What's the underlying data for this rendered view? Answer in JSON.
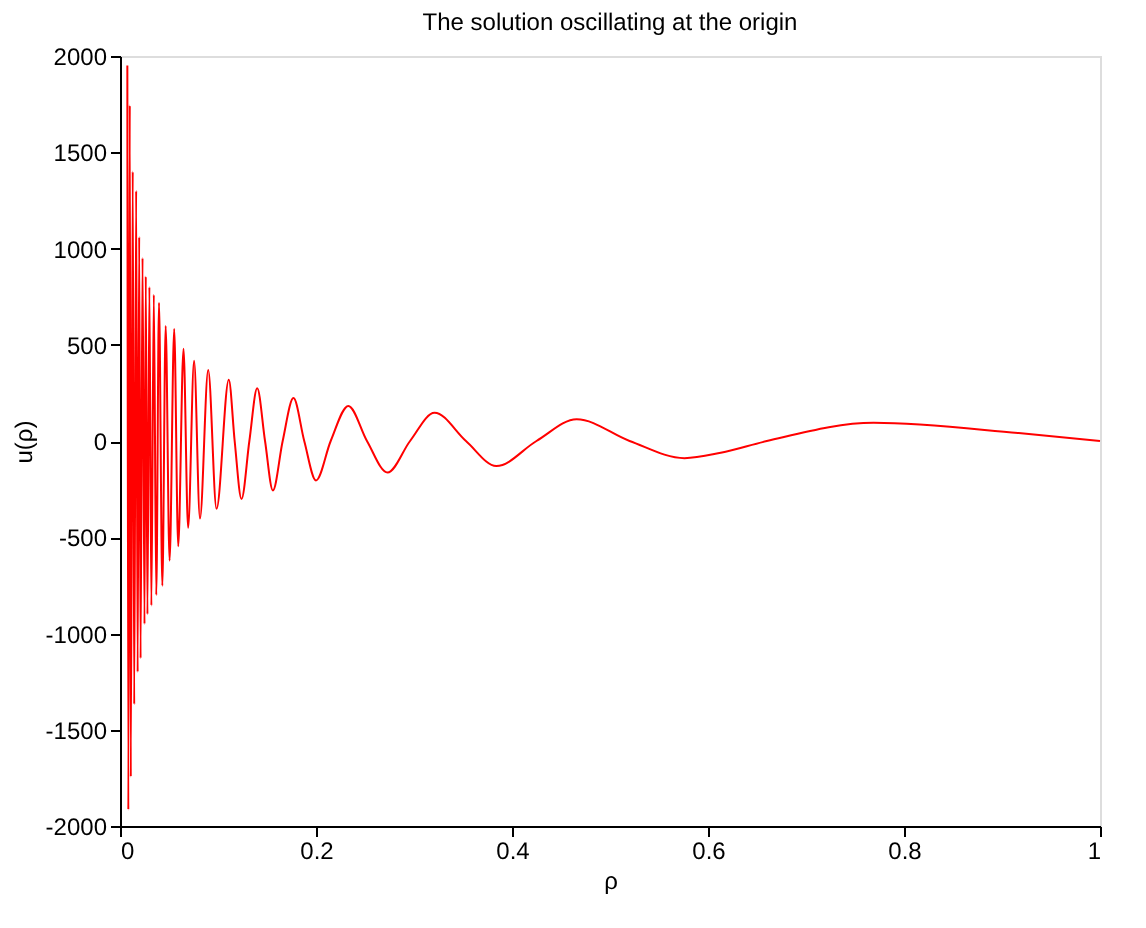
{
  "chart_data": {
    "type": "line",
    "title": "The solution oscillating at the origin",
    "xlabel": "ρ",
    "ylabel": "u(ρ)",
    "x": [
      0.0075,
      0.0085,
      0.01,
      0.011,
      0.013,
      0.0145,
      0.0165,
      0.018,
      0.0196,
      0.021,
      0.023,
      0.025,
      0.0263,
      0.028,
      0.03,
      0.032,
      0.0345,
      0.037,
      0.0398,
      0.0432,
      0.0466,
      0.0506,
      0.0553,
      0.0594,
      0.0648,
      0.0695,
      0.0756,
      0.0816,
      0.09,
      0.0985,
      0.111,
      0.117,
      0.124,
      0.132,
      0.14,
      0.148,
      0.156,
      0.166,
      0.177,
      0.188,
      0.2,
      0.215,
      0.233,
      0.252,
      0.273,
      0.296,
      0.321,
      0.353,
      0.384,
      0.425,
      0.466,
      0.52,
      0.576,
      0.613,
      0.66,
      0.769,
      0.917,
      1.0
    ],
    "series": [
      {
        "color": "#ff0000",
        "values": [
          1950,
          -1915,
          1744,
          -1744,
          1400,
          -1368,
          1300,
          -1200,
          1060,
          -1129,
          950,
          -950,
          855,
          -900,
          800,
          -855,
          760,
          -800,
          718,
          -752,
          598,
          -622,
          582,
          -547,
          479,
          -451,
          417,
          -403,
          369,
          -352,
          318,
          0,
          -301,
          0,
          274,
          0,
          -257,
          0,
          223,
          0,
          -205,
          0,
          182,
          0,
          -164,
          0,
          147,
          0,
          -130,
          0,
          113,
          0,
          -89,
          -61,
          0,
          95,
          41,
          0
        ]
      }
    ],
    "xlim": [
      0,
      1
    ],
    "xticks": [
      0,
      0.2,
      0.4,
      0.6,
      0.8,
      1
    ],
    "ylim": [
      -2000,
      2000
    ],
    "yticks": [
      -2000,
      -1500,
      -1000,
      -500,
      0,
      500,
      1000,
      1500,
      2000
    ],
    "grid": false,
    "line_style": "solid",
    "marker": "none"
  }
}
